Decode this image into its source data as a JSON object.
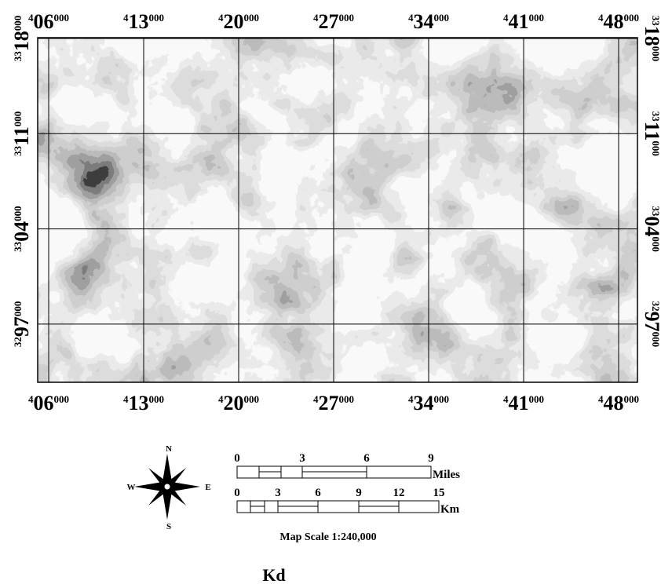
{
  "x_ticks": [
    {
      "prefix": "4",
      "main": "06",
      "suffix": "000"
    },
    {
      "prefix": "4",
      "main": "13",
      "suffix": "000"
    },
    {
      "prefix": "4",
      "main": "20",
      "suffix": "000"
    },
    {
      "prefix": "4",
      "main": "27",
      "suffix": "000"
    },
    {
      "prefix": "4",
      "main": "34",
      "suffix": "000"
    },
    {
      "prefix": "4",
      "main": "41",
      "suffix": "000"
    },
    {
      "prefix": "4",
      "main": "48",
      "suffix": "000"
    }
  ],
  "y_ticks": [
    {
      "prefix": "33",
      "main": "18",
      "suffix": "000"
    },
    {
      "prefix": "33",
      "main": "11",
      "suffix": "000"
    },
    {
      "prefix": "33",
      "main": "04",
      "suffix": "000"
    },
    {
      "prefix": "32",
      "main": "97",
      "suffix": "000"
    }
  ],
  "compass": {
    "north": "N",
    "south": "S",
    "east": "E",
    "west": "W"
  },
  "scale_bar": {
    "miles_labels": [
      "0",
      "3",
      "6",
      "9"
    ],
    "miles_unit": "Miles",
    "km_labels": [
      "0",
      "3",
      "6",
      "9",
      "12",
      "15"
    ],
    "km_unit": "Km",
    "caption": "Map Scale 1:240,000"
  },
  "title": "Kd"
}
